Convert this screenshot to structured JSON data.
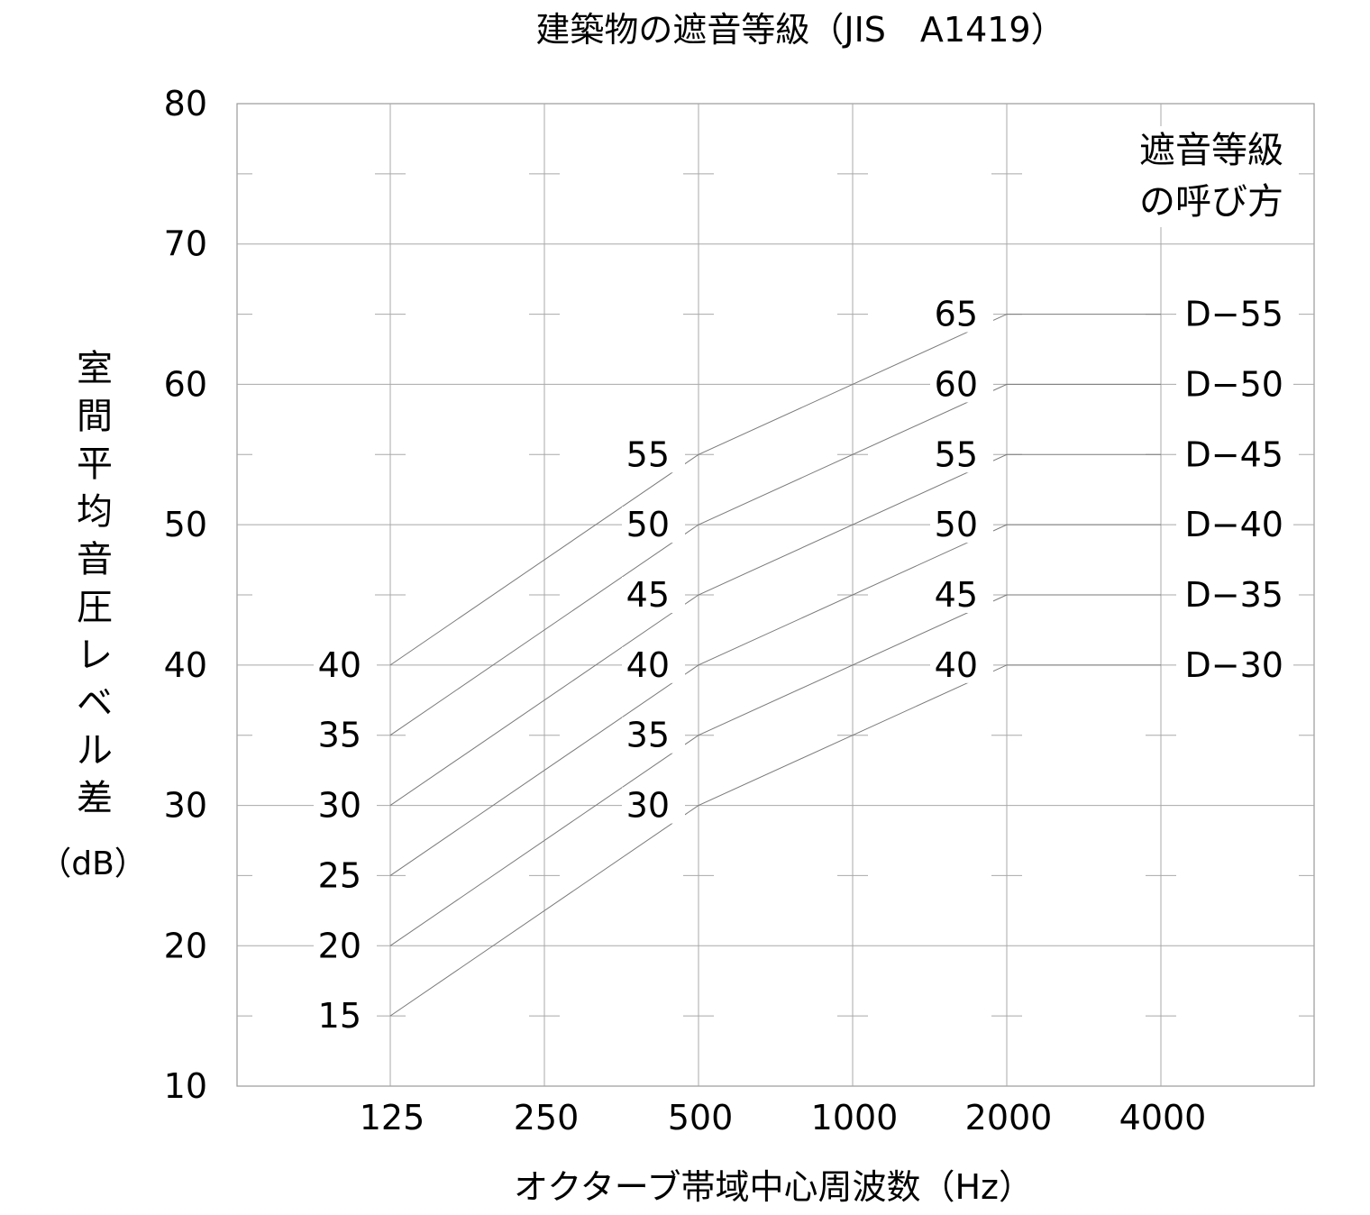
{
  "chart_data": {
    "type": "line",
    "title": "建築物の遮音等級（JIS　A1419）",
    "xlabel": "オクターブ帯域中心周波数（Hz）",
    "ylabel_chars": [
      "室",
      "間",
      "平",
      "均",
      "音",
      "圧",
      "レ",
      "ベ",
      "ル",
      "差"
    ],
    "ylabel_unit": "（dB）",
    "x": [
      125,
      250,
      500,
      1000,
      2000,
      4000
    ],
    "x_tick_labels": [
      "125",
      "250",
      "500",
      "1000",
      "2000",
      "4000"
    ],
    "x_scale": "log2",
    "ylim": [
      10,
      80
    ],
    "y_tick_labels": [
      "10",
      "20",
      "30",
      "40",
      "50",
      "60",
      "70",
      "80"
    ],
    "grid": true,
    "legend_title_lines": [
      "遮音等級",
      "の呼び方"
    ],
    "series": [
      {
        "name": "D−55",
        "points": [
          [
            125,
            40
          ],
          [
            500,
            55
          ],
          [
            2000,
            65
          ],
          [
            4000,
            65
          ]
        ],
        "labels": [
          {
            "x": 125,
            "y": 40,
            "text": "40"
          },
          {
            "x": 500,
            "y": 55,
            "text": "55"
          },
          {
            "x": 2000,
            "y": 65,
            "text": "65"
          }
        ]
      },
      {
        "name": "D−50",
        "points": [
          [
            125,
            35
          ],
          [
            500,
            50
          ],
          [
            2000,
            60
          ],
          [
            4000,
            60
          ]
        ],
        "labels": [
          {
            "x": 125,
            "y": 35,
            "text": "35"
          },
          {
            "x": 500,
            "y": 50,
            "text": "50"
          },
          {
            "x": 2000,
            "y": 60,
            "text": "60"
          }
        ]
      },
      {
        "name": "D−45",
        "points": [
          [
            125,
            30
          ],
          [
            500,
            45
          ],
          [
            2000,
            55
          ],
          [
            4000,
            55
          ]
        ],
        "labels": [
          {
            "x": 125,
            "y": 30,
            "text": "30"
          },
          {
            "x": 500,
            "y": 45,
            "text": "45"
          },
          {
            "x": 2000,
            "y": 55,
            "text": "55"
          }
        ]
      },
      {
        "name": "D−40",
        "points": [
          [
            125,
            25
          ],
          [
            500,
            40
          ],
          [
            2000,
            50
          ],
          [
            4000,
            50
          ]
        ],
        "labels": [
          {
            "x": 125,
            "y": 25,
            "text": "25"
          },
          {
            "x": 500,
            "y": 40,
            "text": "40"
          },
          {
            "x": 2000,
            "y": 50,
            "text": "50"
          }
        ]
      },
      {
        "name": "D−35",
        "points": [
          [
            125,
            20
          ],
          [
            500,
            35
          ],
          [
            2000,
            45
          ],
          [
            4000,
            45
          ]
        ],
        "labels": [
          {
            "x": 125,
            "y": 20,
            "text": "20"
          },
          {
            "x": 500,
            "y": 35,
            "text": "35"
          },
          {
            "x": 2000,
            "y": 45,
            "text": "45"
          }
        ]
      },
      {
        "name": "D−30",
        "points": [
          [
            125,
            15
          ],
          [
            500,
            30
          ],
          [
            2000,
            40
          ],
          [
            4000,
            40
          ]
        ],
        "labels": [
          {
            "x": 125,
            "y": 15,
            "text": "15"
          },
          {
            "x": 500,
            "y": 30,
            "text": "30"
          },
          {
            "x": 2000,
            "y": 40,
            "text": "40"
          }
        ]
      }
    ]
  }
}
